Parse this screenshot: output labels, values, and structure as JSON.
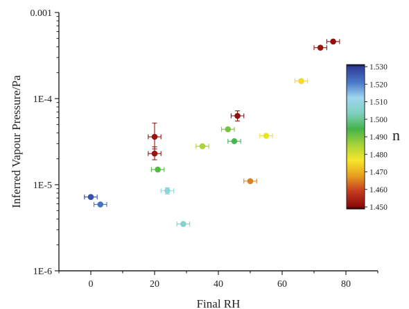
{
  "chart_data": {
    "type": "scatter",
    "xlabel": "Final RH",
    "ylabel": "Inferred Vapour Pressure/Pa",
    "xlim": [
      -10,
      90
    ],
    "ylim": [
      1e-06,
      0.001
    ],
    "y_scale": "log",
    "x_ticks": [
      0,
      20,
      40,
      60,
      80
    ],
    "x_tick_labels": [
      "0",
      "20",
      "40",
      "60",
      "80"
    ],
    "y_ticks": [
      1e-06,
      1e-05,
      0.0001,
      0.001
    ],
    "y_tick_labels": [
      "1E-6",
      "1E-5",
      "1E-4",
      "0.001"
    ],
    "grid": false,
    "colorbar": {
      "title": "n",
      "range": [
        1.45,
        1.53
      ],
      "ticks": [
        1.45,
        1.46,
        1.47,
        1.48,
        1.49,
        1.5,
        1.51,
        1.52,
        1.53
      ],
      "tick_labels": [
        "1.450",
        "1.460",
        "1.470",
        "1.480",
        "1.490",
        "1.500",
        "1.510",
        "1.520",
        "1.530"
      ],
      "colors": [
        "#000000",
        "#8b0a0a",
        "#c43a1e",
        "#e8a020",
        "#f5e62a",
        "#a6d23a",
        "#45b34a",
        "#7fd0c0",
        "#9fd6ee",
        "#4a78c8",
        "#2e3c98",
        "#000000"
      ]
    },
    "points": [
      {
        "x": 0,
        "y": 7.2e-06,
        "n": 1.527,
        "xerr": 2
      },
      {
        "x": 3,
        "y": 5.9e-06,
        "n": 1.522,
        "xerr": 2
      },
      {
        "x": 20,
        "y": 3.6e-05,
        "n": 1.452,
        "xerr": 2,
        "yerr_low": 2.6e-05,
        "yerr_high": 5.2e-05
      },
      {
        "x": 20,
        "y": 2.3e-05,
        "n": 1.452,
        "xerr": 2,
        "yerr_low": 1.95e-05,
        "yerr_high": 2.75e-05
      },
      {
        "x": 21,
        "y": 1.5e-05,
        "n": 1.493,
        "xerr": 2
      },
      {
        "x": 24,
        "y": 8.5e-06,
        "n": 1.508,
        "xerr": 2,
        "yerr_low": 7.8e-06,
        "yerr_high": 9.2e-06
      },
      {
        "x": 29,
        "y": 3.5e-06,
        "n": 1.505,
        "xerr": 2
      },
      {
        "x": 35,
        "y": 2.8e-05,
        "n": 1.485,
        "xerr": 2
      },
      {
        "x": 43,
        "y": 4.4e-05,
        "n": 1.49,
        "xerr": 2
      },
      {
        "x": 45,
        "y": 3.2e-05,
        "n": 1.495,
        "xerr": 2
      },
      {
        "x": 46,
        "y": 6.3e-05,
        "n": 1.451,
        "xerr": 2,
        "yerr_low": 5.5e-05,
        "yerr_high": 7.2e-05
      },
      {
        "x": 50,
        "y": 1.1e-05,
        "n": 1.465,
        "xerr": 2
      },
      {
        "x": 55,
        "y": 3.7e-05,
        "n": 1.478,
        "xerr": 2
      },
      {
        "x": 66,
        "y": 0.00016,
        "n": 1.475,
        "xerr": 2
      },
      {
        "x": 72,
        "y": 0.00039,
        "n": 1.452,
        "xerr": 2
      },
      {
        "x": 76,
        "y": 0.00046,
        "n": 1.451,
        "xerr": 2
      }
    ]
  }
}
